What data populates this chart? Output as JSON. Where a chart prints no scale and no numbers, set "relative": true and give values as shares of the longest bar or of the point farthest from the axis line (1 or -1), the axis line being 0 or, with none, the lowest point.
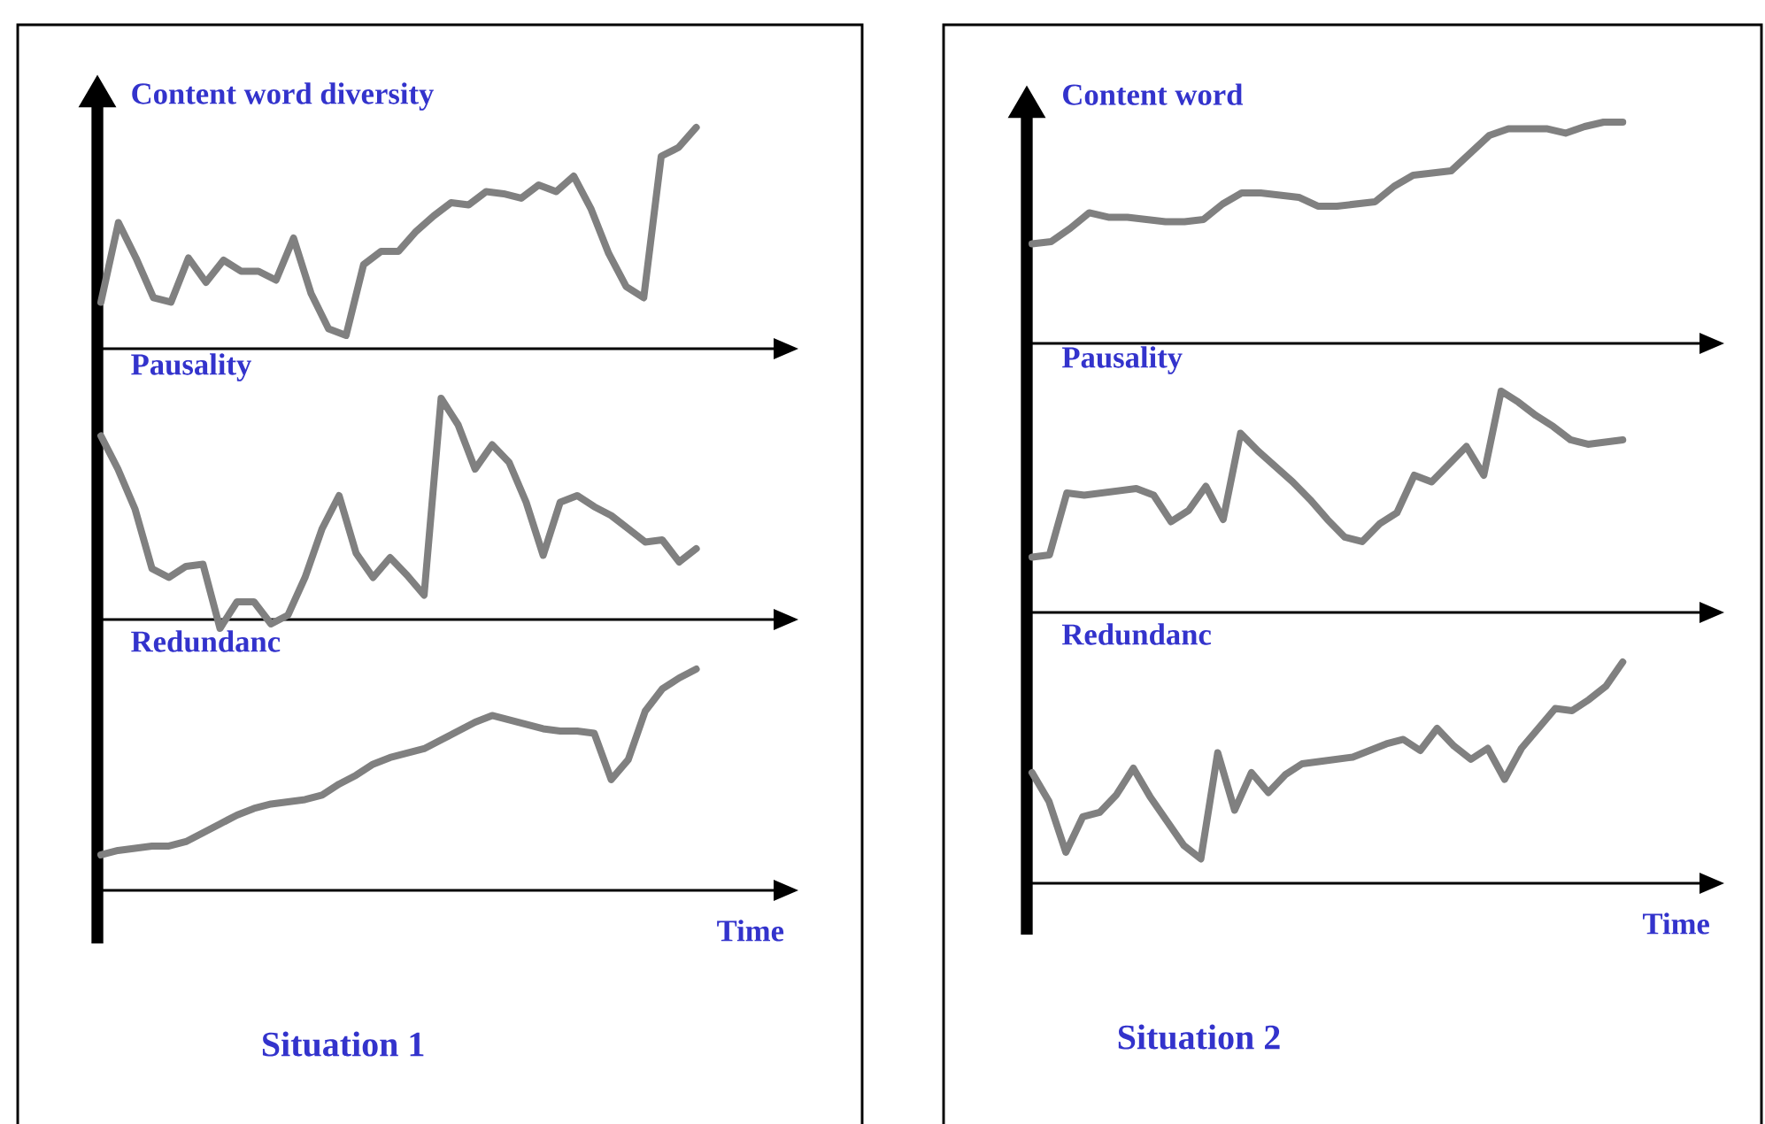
{
  "chart_data": [
    {
      "type": "line",
      "title": "Content word diversity",
      "relative": true,
      "color": "#808080",
      "categories": [
        null,
        null,
        null,
        null,
        null,
        null,
        null,
        null,
        null,
        null,
        null,
        null,
        null,
        null,
        null,
        null,
        null,
        null,
        null,
        null,
        null,
        null,
        null,
        null,
        null,
        null,
        null,
        null,
        null,
        null,
        null,
        null,
        null,
        null,
        null
      ],
      "values": [
        0.21,
        0.57,
        0.41,
        0.23,
        0.21,
        0.41,
        0.3,
        0.4,
        0.35,
        0.35,
        0.31,
        0.5,
        0.25,
        0.09,
        0.06,
        0.38,
        0.44,
        0.44,
        0.53,
        0.6,
        0.66,
        0.65,
        0.71,
        0.7,
        0.68,
        0.74,
        0.71,
        0.78,
        0.63,
        0.43,
        0.28,
        0.23,
        0.87,
        0.91,
        1
      ]
    },
    {
      "type": "line",
      "title": "Pausality",
      "relative": true,
      "color": "#808080",
      "categories": [
        null,
        null,
        null,
        null,
        null,
        null,
        null,
        null,
        null,
        null,
        null,
        null,
        null,
        null,
        null,
        null,
        null,
        null,
        null,
        null,
        null,
        null,
        null,
        null,
        null,
        null,
        null,
        null,
        null,
        null,
        null,
        null,
        null,
        null,
        null,
        null
      ],
      "values": [
        0.83,
        0.68,
        0.5,
        0.23,
        0.19,
        0.24,
        0.25,
        -0.04,
        0.08,
        0.08,
        -0.02,
        0.02,
        0.19,
        0.41,
        0.56,
        0.3,
        0.19,
        0.28,
        0.2,
        0.11,
        1,
        0.88,
        0.68,
        0.79,
        0.71,
        0.53,
        0.29,
        0.53,
        0.56,
        0.51,
        0.47,
        0.41,
        0.35,
        0.36,
        0.26,
        0.32
      ]
    },
    {
      "type": "line",
      "title": "Redundanc",
      "xlabel": "Time",
      "annotations": [
        "Situation 1"
      ],
      "relative": true,
      "color": "#808080",
      "categories": [
        null,
        null,
        null,
        null,
        null,
        null,
        null,
        null,
        null,
        null,
        null,
        null,
        null,
        null,
        null,
        null,
        null,
        null,
        null,
        null,
        null,
        null,
        null,
        null,
        null,
        null,
        null,
        null,
        null,
        null,
        null,
        null,
        null,
        null,
        null,
        null
      ],
      "values": [
        0.16,
        0.18,
        0.19,
        0.2,
        0.2,
        0.22,
        0.26,
        0.3,
        0.34,
        0.37,
        0.39,
        0.4,
        0.41,
        0.43,
        0.48,
        0.52,
        0.57,
        0.6,
        0.62,
        0.64,
        0.68,
        0.72,
        0.76,
        0.79,
        0.77,
        0.75,
        0.73,
        0.72,
        0.72,
        0.71,
        0.5,
        0.59,
        0.81,
        0.91,
        0.96,
        1
      ]
    },
    {
      "type": "line",
      "title": "Content word",
      "relative": true,
      "color": "#808080",
      "categories": [
        null,
        null,
        null,
        null,
        null,
        null,
        null,
        null,
        null,
        null,
        null,
        null,
        null,
        null,
        null,
        null,
        null,
        null,
        null,
        null,
        null,
        null,
        null,
        null,
        null,
        null,
        null,
        null,
        null,
        null,
        null,
        null
      ],
      "values": [
        0.45,
        0.46,
        0.52,
        0.59,
        0.57,
        0.57,
        0.56,
        0.55,
        0.55,
        0.56,
        0.63,
        0.68,
        0.68,
        0.67,
        0.66,
        0.62,
        0.62,
        0.63,
        0.64,
        0.71,
        0.76,
        0.77,
        0.78,
        0.86,
        0.94,
        0.97,
        0.97,
        0.97,
        0.95,
        0.98,
        1,
        1
      ]
    },
    {
      "type": "line",
      "title": "Pausality",
      "relative": true,
      "color": "#808080",
      "categories": [
        null,
        null,
        null,
        null,
        null,
        null,
        null,
        null,
        null,
        null,
        null,
        null,
        null,
        null,
        null,
        null,
        null,
        null,
        null,
        null,
        null,
        null,
        null,
        null,
        null,
        null,
        null,
        null,
        null,
        null,
        null,
        null,
        null,
        null,
        null
      ],
      "values": [
        0.25,
        0.26,
        0.54,
        0.53,
        0.54,
        0.55,
        0.56,
        0.53,
        0.41,
        0.46,
        0.57,
        0.42,
        0.81,
        0.73,
        0.66,
        0.59,
        0.51,
        0.42,
        0.34,
        0.32,
        0.4,
        0.45,
        0.62,
        0.59,
        0.67,
        0.75,
        0.62,
        1,
        0.95,
        0.89,
        0.84,
        0.78,
        0.76,
        0.77,
        0.78
      ]
    },
    {
      "type": "line",
      "title": "Redundanc",
      "xlabel": "Time",
      "annotations": [
        "Situation 2"
      ],
      "relative": true,
      "color": "#808080",
      "categories": [
        null,
        null,
        null,
        null,
        null,
        null,
        null,
        null,
        null,
        null,
        null,
        null,
        null,
        null,
        null,
        null,
        null,
        null,
        null,
        null,
        null,
        null,
        null,
        null,
        null,
        null,
        null,
        null,
        null,
        null,
        null,
        null,
        null,
        null,
        null,
        null
      ],
      "values": [
        0.5,
        0.37,
        0.14,
        0.3,
        0.32,
        0.4,
        0.52,
        0.39,
        0.28,
        0.17,
        0.11,
        0.59,
        0.33,
        0.5,
        0.41,
        0.49,
        0.54,
        0.55,
        0.56,
        0.57,
        0.6,
        0.63,
        0.65,
        0.6,
        0.7,
        0.62,
        0.56,
        0.61,
        0.47,
        0.61,
        0.7,
        0.79,
        0.78,
        0.83,
        0.89,
        1
      ]
    }
  ]
}
